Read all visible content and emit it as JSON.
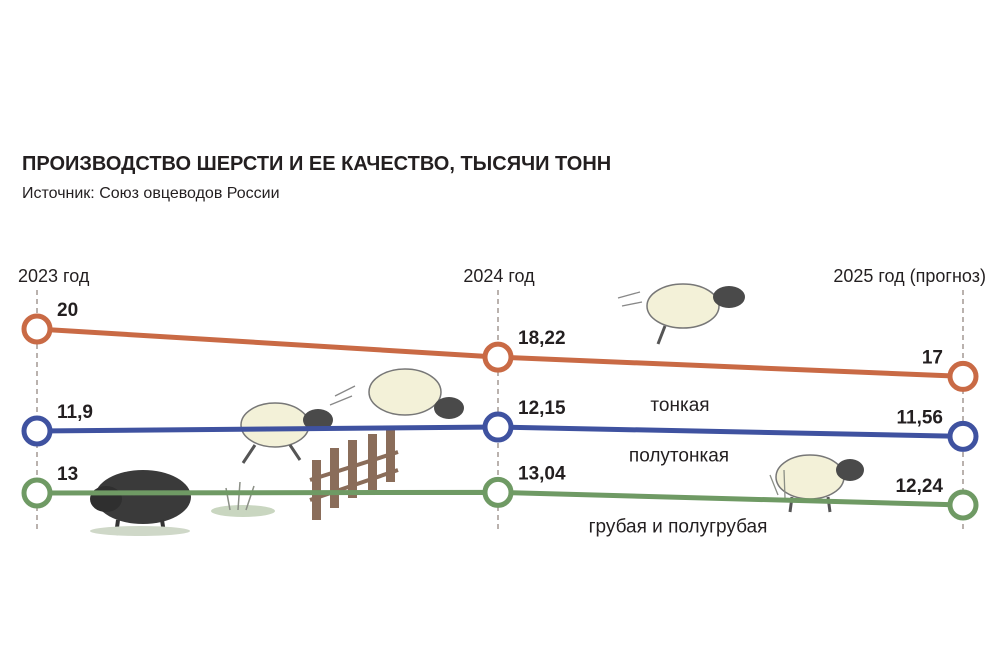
{
  "chart_data": {
    "type": "line",
    "title": "ПРОИЗВОДСТВО ШЕРСТИ И ЕЕ КАЧЕСТВО, ТЫСЯЧИ ТОНН",
    "subtitle": "Источник: Союз овцеводов России",
    "categories": [
      "2023 год",
      "2024 год",
      "2025 год (прогноз)"
    ],
    "series": [
      {
        "name": "тонкая",
        "values": [
          20,
          18.22,
          17
        ],
        "value_labels": [
          "20",
          "18,22",
          "17"
        ],
        "color": "#c96a45"
      },
      {
        "name": "полутонкая",
        "values": [
          11.9,
          12.15,
          11.56
        ],
        "value_labels": [
          "11,9",
          "12,15",
          "11,56"
        ],
        "color": "#3f52a0"
      },
      {
        "name": "грубая и полугрубая",
        "values": [
          13,
          13.04,
          12.24
        ],
        "value_labels": [
          "13",
          "13,04",
          "12,24"
        ],
        "color": "#6f9a64"
      }
    ],
    "legend": "inline labels",
    "grid": false
  },
  "decorations": {
    "illustration": [
      "sheep-illustration",
      "fence-illustration",
      "grass-illustration"
    ]
  }
}
